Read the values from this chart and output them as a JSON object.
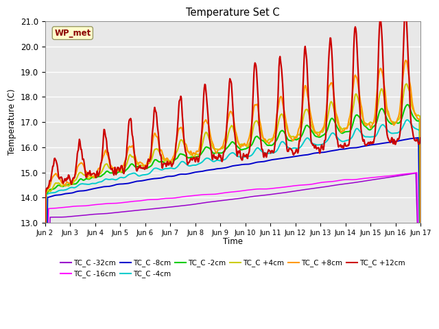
{
  "title": "Temperature Set C",
  "xlabel": "Time",
  "ylabel": "Temperature (C)",
  "ylim": [
    13.0,
    21.0
  ],
  "yticks": [
    13.0,
    14.0,
    15.0,
    16.0,
    17.0,
    18.0,
    19.0,
    20.0,
    21.0
  ],
  "annotation": "WP_met",
  "background_color": "#e8e8e8",
  "series": [
    {
      "label": "TC_C -32cm",
      "color": "#9900cc"
    },
    {
      "label": "TC_C -16cm",
      "color": "#ff00ff"
    },
    {
      "label": "TC_C -8cm",
      "color": "#0000cc"
    },
    {
      "label": "TC_C -4cm",
      "color": "#00cccc"
    },
    {
      "label": "TC_C -2cm",
      "color": "#00cc00"
    },
    {
      "label": "TC_C +4cm",
      "color": "#cccc00"
    },
    {
      "label": "TC_C +8cm",
      "color": "#ff9900"
    },
    {
      "label": "TC_C +12cm",
      "color": "#cc0000"
    }
  ],
  "xtick_labels": [
    "Jun 2",
    "Jun 3",
    "Jun 4",
    "Jun 5",
    "Jun 6",
    "Jun 7",
    "Jun 8",
    "Jun 9",
    "Jun 10",
    "Jun 11",
    "Jun 12",
    "Jun 13",
    "Jun 14",
    "Jun 15",
    "Jun 16",
    "Jun 17"
  ],
  "n_points": 720,
  "days": 15
}
